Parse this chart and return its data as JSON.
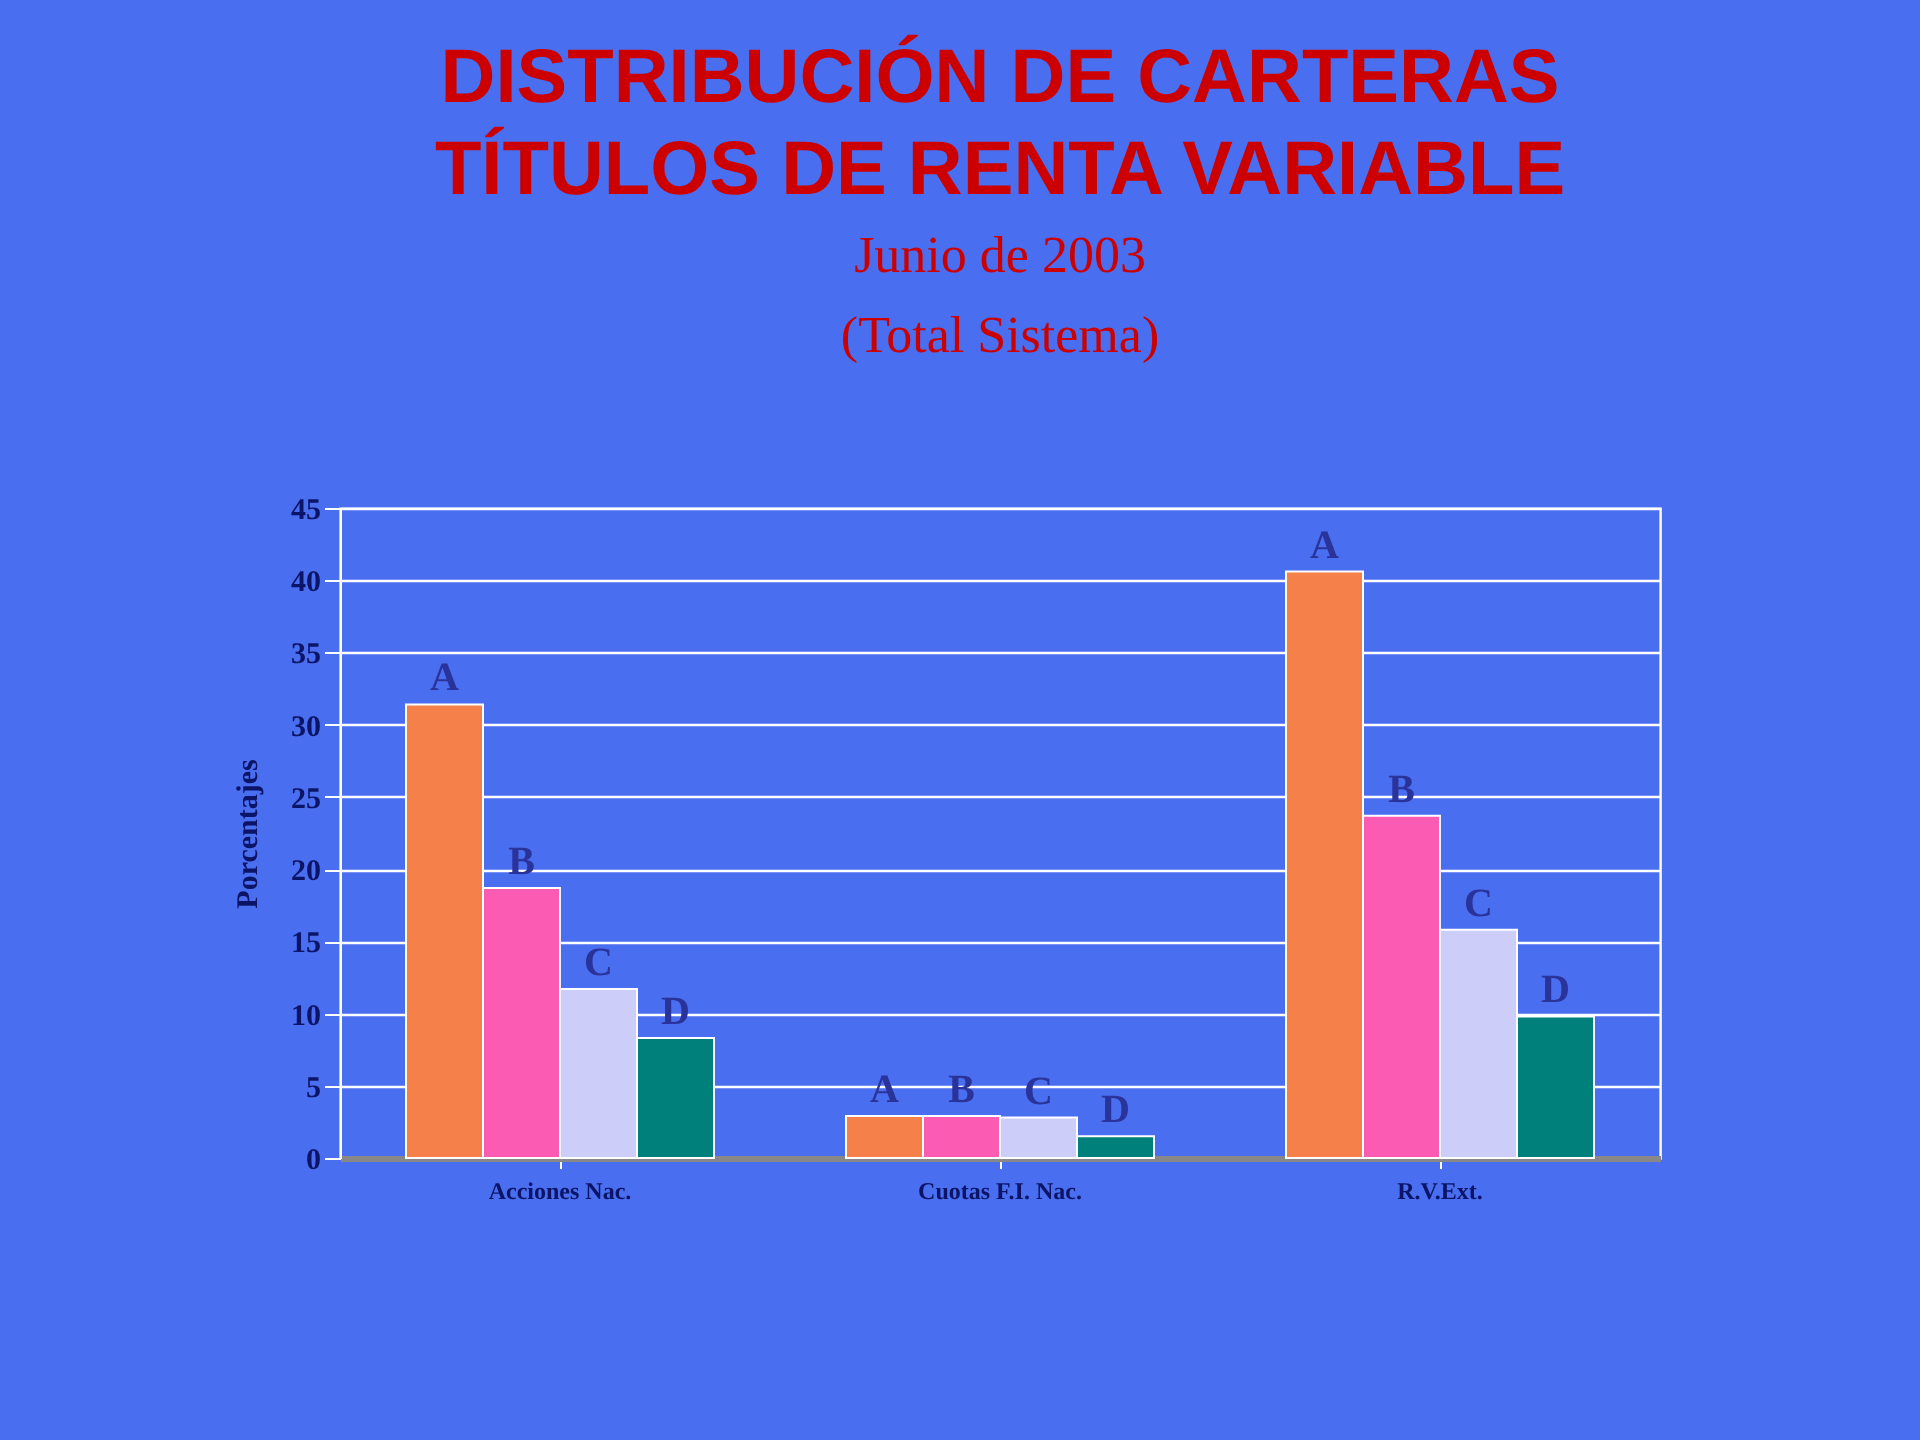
{
  "chart_data": {
    "type": "bar",
    "title": "DISTRIBUCIÓN DE CARTERAS\nTÍTULOS DE RENTA VARIABLE",
    "subtitle": "Junio de 2003\n(Total Sistema)",
    "ylabel": "Porcentajes",
    "categories": [
      "Acciones Nac.",
      "Cuotas F.I. Nac.",
      "R.V.Ext."
    ],
    "series": [
      {
        "name": "A",
        "color": "#f5804a",
        "values": [
          31.4,
          2.9,
          40.6
        ]
      },
      {
        "name": "B",
        "color": "#fc5bb4",
        "values": [
          18.7,
          2.9,
          23.7
        ]
      },
      {
        "name": "C",
        "color": "#cccdf8",
        "values": [
          11.7,
          2.8,
          15.8
        ]
      },
      {
        "name": "D",
        "color": "#00807a",
        "values": [
          8.3,
          1.5,
          9.8
        ]
      }
    ],
    "ylim": [
      0,
      45
    ],
    "yticks": [
      0,
      5,
      10,
      15,
      20,
      25,
      30,
      35,
      40,
      45
    ],
    "grid": "y"
  }
}
